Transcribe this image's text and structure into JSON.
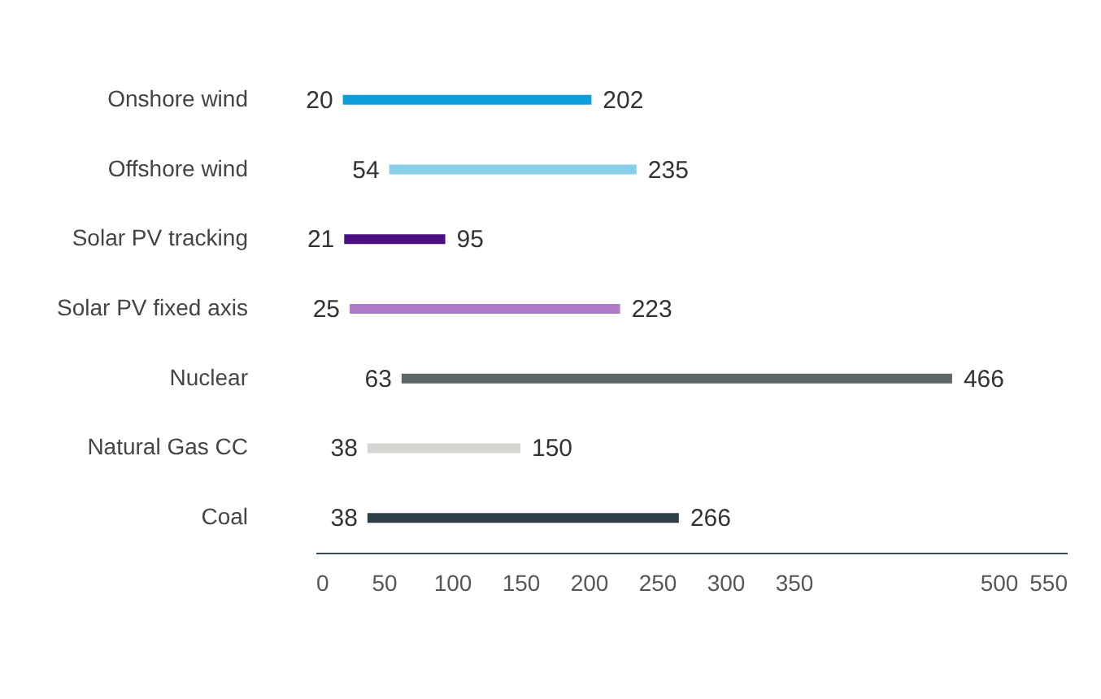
{
  "chart_data": {
    "type": "bar",
    "orientation": "horizontal",
    "categories": [
      "Onshore wind",
      "Offshore wind",
      "Solar PV tracking",
      "Solar PV fixed axis",
      "Nuclear",
      "Natural Gas CC",
      "Coal"
    ],
    "base": [
      20,
      54,
      21,
      25,
      63,
      38,
      38
    ],
    "values": [
      182,
      181,
      74,
      198,
      403,
      112,
      228
    ],
    "value_labels": [
      "202",
      "235",
      "95",
      "223",
      "466",
      "150",
      "266"
    ],
    "colors": [
      "#0d9ddb",
      "#87ceeb",
      "#4b0f82",
      "#b07cc8",
      "#5f6668",
      "#d6d6d2",
      "#2f3f4a"
    ],
    "xlim": [
      0,
      550
    ],
    "xticks": [
      0,
      50,
      100,
      150,
      200,
      250,
      300,
      350,
      500,
      550
    ],
    "grid": false,
    "legend": false,
    "annotations": [
      {
        "text": "20",
        "x": 20,
        "y": "Onshore wind"
      },
      {
        "text": "54",
        "x": 54,
        "y": "Offshore wind"
      },
      {
        "text": "21",
        "x": 21,
        "y": "Solar PV tracking"
      },
      {
        "text": "25",
        "x": 25,
        "y": "Solar PV fixed axis"
      },
      {
        "text": "63",
        "x": 63,
        "y": "Nuclear"
      },
      {
        "text": "38",
        "x": 38,
        "y": "Natural Gas CC"
      },
      {
        "text": "38",
        "x": 38,
        "y": "Coal"
      }
    ]
  }
}
